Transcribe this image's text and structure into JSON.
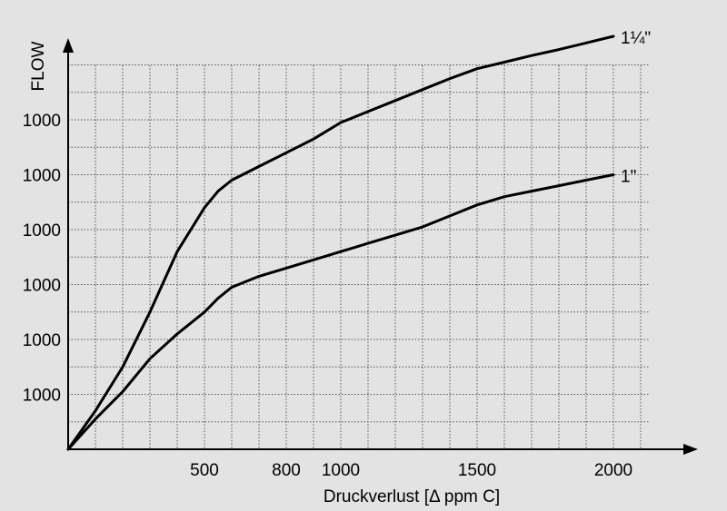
{
  "chart_data": {
    "type": "line",
    "ylabel": "FLOW",
    "xlabel": "Druckverlust [Δ  ppm C]",
    "x_ticks": [
      500,
      800,
      1000,
      1500,
      2000
    ],
    "y_ticks": [
      {
        "value": 1,
        "label": "1000"
      },
      {
        "value": 2,
        "label": "1000"
      },
      {
        "value": 3,
        "label": "1000"
      },
      {
        "value": 4,
        "label": "1000"
      },
      {
        "value": 5,
        "label": "1000"
      },
      {
        "value": 6,
        "label": "1000"
      }
    ],
    "xlim": [
      0,
      2300
    ],
    "ylim": [
      0,
      7
    ],
    "grid": true,
    "series": [
      {
        "name": "1¼\"",
        "x": [
          0,
          100,
          200,
          300,
          350,
          400,
          450,
          500,
          550,
          600,
          700,
          800,
          900,
          1000,
          1100,
          1200,
          1300,
          1400,
          1500,
          1600,
          1700,
          1800,
          1900,
          2000
        ],
        "y": [
          0,
          0.7,
          1.5,
          2.5,
          3.05,
          3.6,
          4.0,
          4.4,
          4.7,
          4.9,
          5.15,
          5.4,
          5.65,
          5.95,
          6.15,
          6.35,
          6.55,
          6.75,
          6.93,
          7.05,
          7.17,
          7.28,
          7.4,
          7.52
        ]
      },
      {
        "name": "1\"",
        "x": [
          0,
          100,
          200,
          300,
          400,
          500,
          550,
          600,
          700,
          800,
          900,
          1000,
          1100,
          1200,
          1300,
          1400,
          1500,
          1600,
          1700,
          1800,
          1900,
          2000
        ],
        "y": [
          0,
          0.55,
          1.05,
          1.65,
          2.1,
          2.5,
          2.75,
          2.95,
          3.15,
          3.3,
          3.45,
          3.6,
          3.75,
          3.9,
          4.05,
          4.25,
          4.45,
          4.6,
          4.7,
          4.8,
          4.9,
          5.0
        ]
      }
    ]
  }
}
